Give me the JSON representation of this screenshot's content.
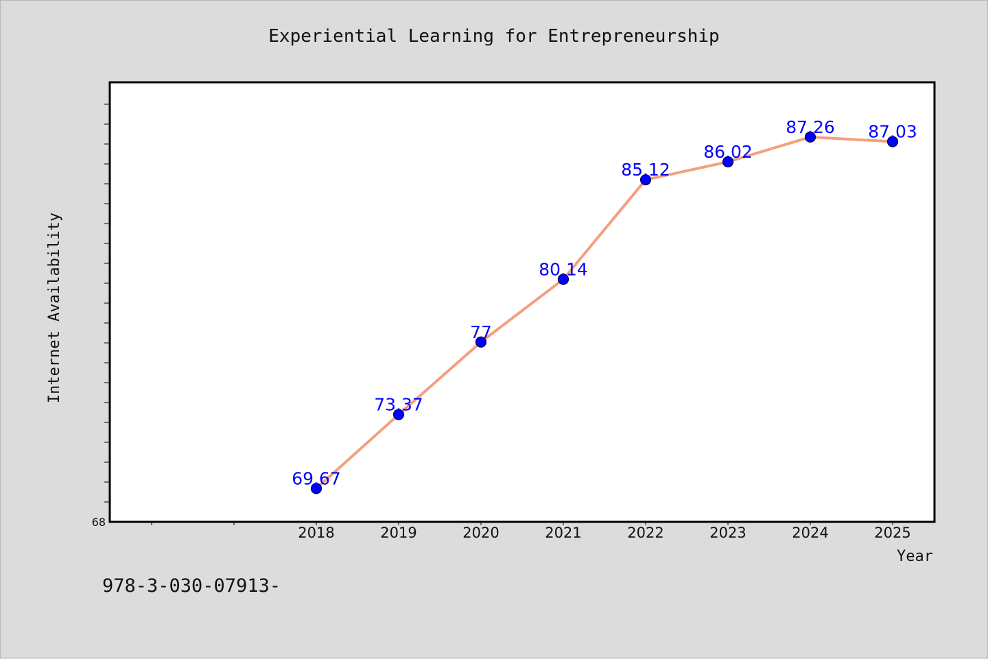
{
  "chart_data": {
    "type": "line",
    "title": "Experiential Learning for Entrepreneurship",
    "xlabel": "Year",
    "ylabel": "Internet Availability",
    "categories": [
      "2018",
      "2019",
      "2020",
      "2021",
      "2022",
      "2023",
      "2024",
      "2025"
    ],
    "series": [
      {
        "values": [
          69.67,
          73.37,
          77,
          80.14,
          85.12,
          86.02,
          87.26,
          87.03
        ]
      }
    ],
    "data_labels": [
      "69.67",
      "73.37",
      "77",
      "80.14",
      "85.12",
      "86.02",
      "87.26",
      "87.03"
    ],
    "ylim": [
      68,
      90
    ],
    "y_tick_labels": [
      "68"
    ],
    "grid": false,
    "legend": "none",
    "line_color": "#f4a07f",
    "marker_color": "#0000ff",
    "label_color": "#0000ff"
  },
  "footnote": "978-3-030-07913-"
}
